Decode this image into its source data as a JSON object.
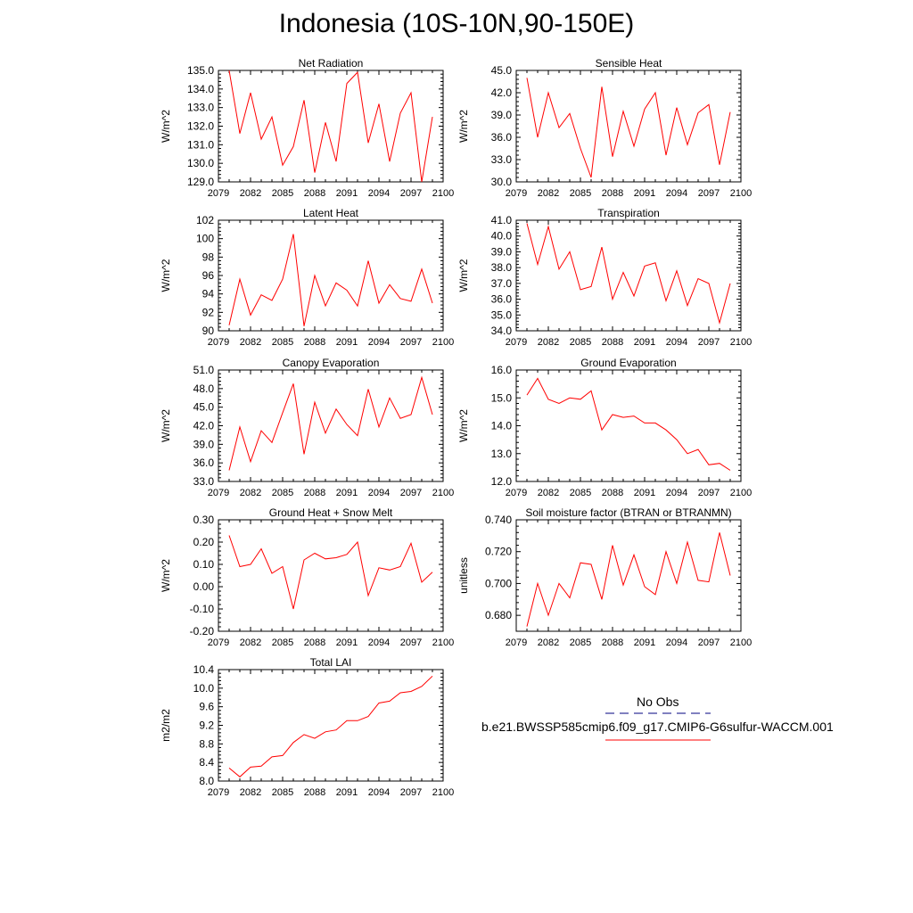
{
  "title": "Indonesia (10S-10N,90-150E)",
  "legend": {
    "obs_label": "No Obs",
    "obs_color": "#000080",
    "model_label": "b.e21.BWSSP585cmip6.f09_g17.CMIP6-G6sulfur-WACCM.001",
    "model_color": "#ff0000"
  },
  "chart_data": [
    {
      "type": "line",
      "title": "Net Radiation",
      "ylabel": "W/m^2",
      "xlim": [
        2079,
        2100
      ],
      "ylim": [
        129.0,
        135.0
      ],
      "xmajor": [
        2079,
        2082,
        2085,
        2088,
        2091,
        2094,
        2097,
        2100
      ],
      "yticks": [
        "135.0",
        "134.0",
        "133.0",
        "132.0",
        "131.0",
        "130.0",
        "129.0"
      ],
      "x": [
        2080,
        2081,
        2082,
        2083,
        2084,
        2085,
        2086,
        2087,
        2088,
        2089,
        2090,
        2091,
        2092,
        2093,
        2094,
        2095,
        2096,
        2097,
        2098,
        2099
      ],
      "values": [
        135.0,
        131.6,
        133.8,
        131.3,
        132.5,
        129.9,
        130.9,
        133.4,
        129.5,
        132.2,
        130.1,
        134.3,
        134.9,
        131.1,
        133.2,
        130.1,
        132.7,
        133.8,
        129.0,
        132.5
      ]
    },
    {
      "type": "line",
      "title": "Sensible Heat",
      "ylabel": "W/m^2",
      "xlim": [
        2079,
        2100
      ],
      "ylim": [
        30.0,
        45.0
      ],
      "xmajor": [
        2079,
        2082,
        2085,
        2088,
        2091,
        2094,
        2097,
        2100
      ],
      "yticks": [
        "45.0",
        "42.0",
        "39.0",
        "36.0",
        "33.0",
        "30.0"
      ],
      "x": [
        2080,
        2081,
        2082,
        2083,
        2084,
        2085,
        2086,
        2087,
        2088,
        2089,
        2090,
        2091,
        2092,
        2093,
        2094,
        2095,
        2096,
        2097,
        2098,
        2099
      ],
      "values": [
        44.0,
        36.0,
        42.0,
        37.3,
        39.2,
        34.5,
        30.6,
        42.8,
        33.4,
        39.5,
        34.8,
        39.8,
        42.0,
        33.6,
        40.0,
        35.0,
        39.3,
        40.4,
        32.3,
        39.4
      ]
    },
    {
      "type": "line",
      "title": "Latent Heat",
      "ylabel": "W/m^2",
      "xlim": [
        2079,
        2100
      ],
      "ylim": [
        90,
        102
      ],
      "xmajor": [
        2079,
        2082,
        2085,
        2088,
        2091,
        2094,
        2097,
        2100
      ],
      "yticks": [
        "102",
        "100",
        "98",
        "96",
        "94",
        "92",
        "90"
      ],
      "x": [
        2080,
        2081,
        2082,
        2083,
        2084,
        2085,
        2086,
        2087,
        2088,
        2089,
        2090,
        2091,
        2092,
        2093,
        2094,
        2095,
        2096,
        2097,
        2098,
        2099
      ],
      "values": [
        90.6,
        95.6,
        91.7,
        93.9,
        93.3,
        95.6,
        100.5,
        90.5,
        96.0,
        92.7,
        95.2,
        94.4,
        92.7,
        97.6,
        93.0,
        95.0,
        93.5,
        93.2,
        96.7,
        93.0
      ]
    },
    {
      "type": "line",
      "title": "Transpiration",
      "ylabel": "W/m^2",
      "xlim": [
        2079,
        2100
      ],
      "ylim": [
        34.0,
        41.0
      ],
      "xmajor": [
        2079,
        2082,
        2085,
        2088,
        2091,
        2094,
        2097,
        2100
      ],
      "yticks": [
        "41.0",
        "40.0",
        "39.0",
        "38.0",
        "37.0",
        "36.0",
        "35.0",
        "34.0"
      ],
      "x": [
        2080,
        2081,
        2082,
        2083,
        2084,
        2085,
        2086,
        2087,
        2088,
        2089,
        2090,
        2091,
        2092,
        2093,
        2094,
        2095,
        2096,
        2097,
        2098,
        2099
      ],
      "values": [
        40.8,
        38.2,
        40.6,
        37.9,
        39.0,
        36.6,
        36.8,
        39.3,
        36.0,
        37.7,
        36.2,
        38.1,
        38.3,
        35.9,
        37.8,
        35.6,
        37.3,
        37.0,
        34.5,
        37.0
      ]
    },
    {
      "type": "line",
      "title": "Canopy Evaporation",
      "ylabel": "W/m^2",
      "xlim": [
        2079,
        2100
      ],
      "ylim": [
        33.0,
        51.0
      ],
      "xmajor": [
        2079,
        2082,
        2085,
        2088,
        2091,
        2094,
        2097,
        2100
      ],
      "yticks": [
        "51.0",
        "48.0",
        "45.0",
        "42.0",
        "39.0",
        "36.0",
        "33.0"
      ],
      "x": [
        2080,
        2081,
        2082,
        2083,
        2084,
        2085,
        2086,
        2087,
        2088,
        2089,
        2090,
        2091,
        2092,
        2093,
        2094,
        2095,
        2096,
        2097,
        2098,
        2099
      ],
      "values": [
        34.8,
        41.8,
        36.2,
        41.2,
        39.3,
        44.1,
        48.8,
        37.4,
        45.8,
        40.8,
        44.7,
        42.2,
        40.4,
        47.9,
        41.8,
        46.5,
        43.2,
        43.8,
        49.8,
        43.8
      ]
    },
    {
      "type": "line",
      "title": "Ground Evaporation",
      "ylabel": "W/m^2",
      "xlim": [
        2079,
        2100
      ],
      "ylim": [
        12.0,
        16.0
      ],
      "xmajor": [
        2079,
        2082,
        2085,
        2088,
        2091,
        2094,
        2097,
        2100
      ],
      "yticks": [
        "16.0",
        "15.0",
        "14.0",
        "13.0",
        "12.0"
      ],
      "x": [
        2080,
        2081,
        2082,
        2083,
        2084,
        2085,
        2086,
        2087,
        2088,
        2089,
        2090,
        2091,
        2092,
        2093,
        2094,
        2095,
        2096,
        2097,
        2098,
        2099
      ],
      "values": [
        15.1,
        15.7,
        14.95,
        14.8,
        15.0,
        14.95,
        15.25,
        13.85,
        14.4,
        14.3,
        14.35,
        14.1,
        14.1,
        13.85,
        13.5,
        13.0,
        13.15,
        12.6,
        12.65,
        12.4
      ]
    },
    {
      "type": "line",
      "title": "Ground Heat + Snow Melt",
      "ylabel": "W/m^2",
      "xlim": [
        2079,
        2100
      ],
      "ylim": [
        -0.2,
        0.3
      ],
      "xmajor": [
        2079,
        2082,
        2085,
        2088,
        2091,
        2094,
        2097,
        2100
      ],
      "yticks": [
        "0.30",
        "0.20",
        "0.10",
        "0.00",
        "-0.10",
        "-0.20"
      ],
      "x": [
        2080,
        2081,
        2082,
        2083,
        2084,
        2085,
        2086,
        2087,
        2088,
        2089,
        2090,
        2091,
        2092,
        2093,
        2094,
        2095,
        2096,
        2097,
        2098,
        2099
      ],
      "values": [
        0.23,
        0.09,
        0.1,
        0.17,
        0.06,
        0.09,
        -0.1,
        0.12,
        0.15,
        0.125,
        0.13,
        0.145,
        0.2,
        -0.04,
        0.085,
        0.075,
        0.09,
        0.195,
        0.02,
        0.065
      ]
    },
    {
      "type": "line",
      "title": "Soil moisture factor (BTRAN or BTRANMN)",
      "ylabel": "unitless",
      "xlim": [
        2079,
        2100
      ],
      "ylim": [
        0.67,
        0.74
      ],
      "xmajor": [
        2079,
        2082,
        2085,
        2088,
        2091,
        2094,
        2097,
        2100
      ],
      "yticks": [
        "0.740",
        "0.720",
        "0.700",
        "0.680"
      ],
      "x": [
        2080,
        2081,
        2082,
        2083,
        2084,
        2085,
        2086,
        2087,
        2088,
        2089,
        2090,
        2091,
        2092,
        2093,
        2094,
        2095,
        2096,
        2097,
        2098,
        2099
      ],
      "values": [
        0.673,
        0.7,
        0.68,
        0.7,
        0.691,
        0.713,
        0.712,
        0.69,
        0.724,
        0.699,
        0.718,
        0.698,
        0.693,
        0.72,
        0.7,
        0.726,
        0.702,
        0.701,
        0.732,
        0.705
      ]
    },
    {
      "type": "line",
      "title": "Total LAI",
      "ylabel": "m2/m2",
      "xlim": [
        2079,
        2100
      ],
      "ylim": [
        8.0,
        10.4
      ],
      "xmajor": [
        2079,
        2082,
        2085,
        2088,
        2091,
        2094,
        2097,
        2100
      ],
      "yticks": [
        "10.4",
        "10.0",
        "9.6",
        "9.2",
        "8.8",
        "8.4",
        "8.0"
      ],
      "x": [
        2080,
        2081,
        2082,
        2083,
        2084,
        2085,
        2086,
        2087,
        2088,
        2089,
        2090,
        2091,
        2092,
        2093,
        2094,
        2095,
        2096,
        2097,
        2098,
        2099
      ],
      "values": [
        8.28,
        8.09,
        8.3,
        8.32,
        8.52,
        8.55,
        8.83,
        9.0,
        8.92,
        9.06,
        9.1,
        9.3,
        9.3,
        9.39,
        9.68,
        9.72,
        9.9,
        9.93,
        10.04,
        10.26
      ]
    }
  ]
}
